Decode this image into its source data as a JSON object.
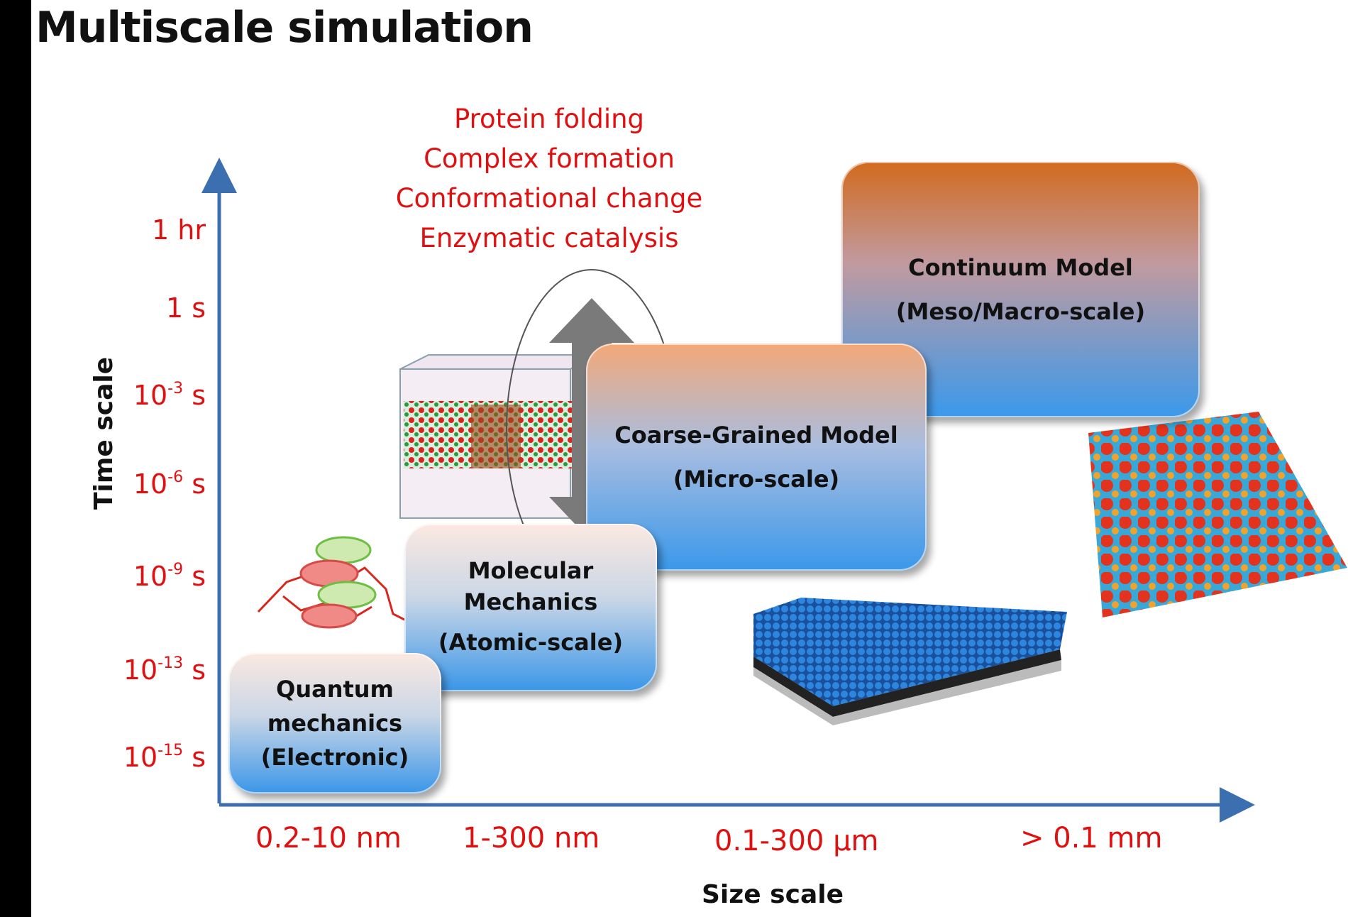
{
  "title": "Multiscale simulation",
  "axes": {
    "y_title": "Time scale",
    "x_title": "Size scale",
    "y_ticks": [
      {
        "base": "1 hr",
        "exp": ""
      },
      {
        "base": "1 s",
        "exp": ""
      },
      {
        "base": "10",
        "exp": "-3",
        "unit": " s"
      },
      {
        "base": "10",
        "exp": "-6",
        "unit": " s"
      },
      {
        "base": "10",
        "exp": "-9",
        "unit": " s"
      },
      {
        "base": "10",
        "exp": "-13",
        "unit": " s"
      },
      {
        "base": "10",
        "exp": "-15",
        "unit": " s"
      }
    ],
    "x_ticks": [
      "0.2-10 nm",
      "1-300 nm",
      "0.1-300 µm",
      "> 0.1 mm"
    ]
  },
  "phenomena": [
    "Protein folding",
    "Complex formation",
    "Conformational change",
    "Enzymatic catalysis"
  ],
  "models": {
    "quantum": {
      "l1": "Quantum",
      "l2": "mechanics",
      "l3": "(Electronic)"
    },
    "molecular": {
      "l1": "Molecular",
      "l2": "Mechanics",
      "l3": "(Atomic-scale)"
    },
    "coarse": {
      "l1": "Coarse-Grained Model",
      "l2": "(Micro-scale)"
    },
    "continuum": {
      "l1": "Continuum Model",
      "l2": "(Meso/Macro-scale)"
    }
  },
  "colors": {
    "axis": "#3b6fb0",
    "tick_text": "#e01010",
    "arrow": "#7a7a7a"
  }
}
